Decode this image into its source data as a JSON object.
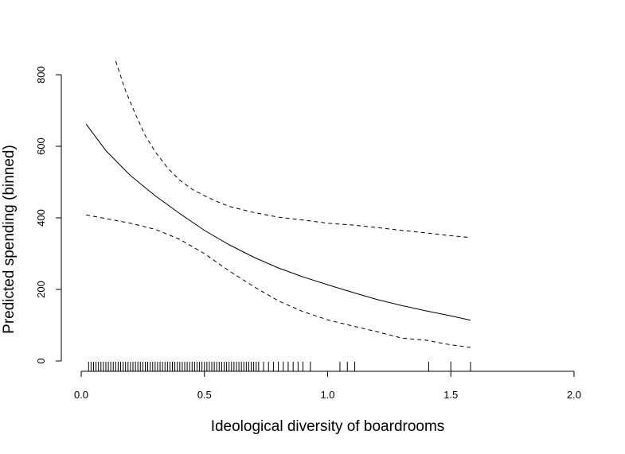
{
  "chart_data": {
    "type": "line",
    "title": "",
    "xlabel": "Ideological diversity of boardrooms",
    "ylabel": "Predicted spending (binned)",
    "xlim": [
      0.0,
      2.0
    ],
    "ylim": [
      0,
      800
    ],
    "x_ticks": [
      0.0,
      0.5,
      1.0,
      1.5,
      2.0
    ],
    "x_tick_labels": [
      "0.0",
      "0.5",
      "1.0",
      "1.5",
      "2.0"
    ],
    "y_ticks": [
      0,
      200,
      400,
      600,
      800
    ],
    "y_tick_labels": [
      "0",
      "200",
      "400",
      "600",
      "800"
    ],
    "grid": false,
    "legend": "none",
    "colors": {
      "line": "#000000",
      "background": "#ffffff"
    },
    "series": [
      {
        "style": "solid",
        "x": [
          0.02,
          0.1,
          0.2,
          0.3,
          0.4,
          0.5,
          0.6,
          0.7,
          0.8,
          0.9,
          1.0,
          1.1,
          1.2,
          1.3,
          1.4,
          1.5,
          1.58
        ],
        "y": [
          662,
          588,
          518,
          462,
          412,
          365,
          325,
          290,
          260,
          235,
          213,
          192,
          172,
          155,
          140,
          126,
          114
        ]
      },
      {
        "style": "dashed",
        "x": [
          0.14,
          0.18,
          0.22,
          0.26,
          0.3,
          0.35,
          0.4,
          0.45,
          0.5,
          0.55,
          0.6,
          0.7,
          0.8,
          0.9,
          1.0,
          1.1,
          1.2,
          1.3,
          1.4,
          1.5,
          1.58
        ],
        "y": [
          838,
          755,
          690,
          630,
          585,
          540,
          505,
          480,
          462,
          446,
          432,
          415,
          402,
          394,
          385,
          380,
          373,
          365,
          358,
          350,
          345
        ]
      },
      {
        "style": "dashed",
        "x": [
          0.02,
          0.1,
          0.2,
          0.3,
          0.4,
          0.5,
          0.6,
          0.7,
          0.8,
          0.9,
          1.0,
          1.1,
          1.2,
          1.3,
          1.4,
          1.5,
          1.58
        ],
        "y": [
          408,
          398,
          385,
          368,
          340,
          300,
          252,
          208,
          168,
          138,
          115,
          98,
          82,
          64,
          58,
          45,
          38
        ]
      }
    ],
    "rug": [
      0.03,
      0.04,
      0.05,
      0.06,
      0.07,
      0.08,
      0.09,
      0.1,
      0.11,
      0.12,
      0.13,
      0.14,
      0.15,
      0.16,
      0.17,
      0.18,
      0.19,
      0.2,
      0.21,
      0.22,
      0.23,
      0.24,
      0.25,
      0.26,
      0.27,
      0.28,
      0.29,
      0.3,
      0.31,
      0.32,
      0.33,
      0.34,
      0.35,
      0.36,
      0.37,
      0.38,
      0.39,
      0.4,
      0.41,
      0.42,
      0.43,
      0.44,
      0.45,
      0.46,
      0.47,
      0.48,
      0.49,
      0.5,
      0.51,
      0.52,
      0.53,
      0.54,
      0.55,
      0.56,
      0.57,
      0.58,
      0.59,
      0.6,
      0.61,
      0.62,
      0.63,
      0.64,
      0.65,
      0.66,
      0.67,
      0.68,
      0.69,
      0.7,
      0.71,
      0.72,
      0.74,
      0.76,
      0.78,
      0.8,
      0.82,
      0.84,
      0.86,
      0.88,
      0.9,
      0.93,
      1.05,
      1.08,
      1.11,
      1.41,
      1.5,
      1.58
    ]
  }
}
